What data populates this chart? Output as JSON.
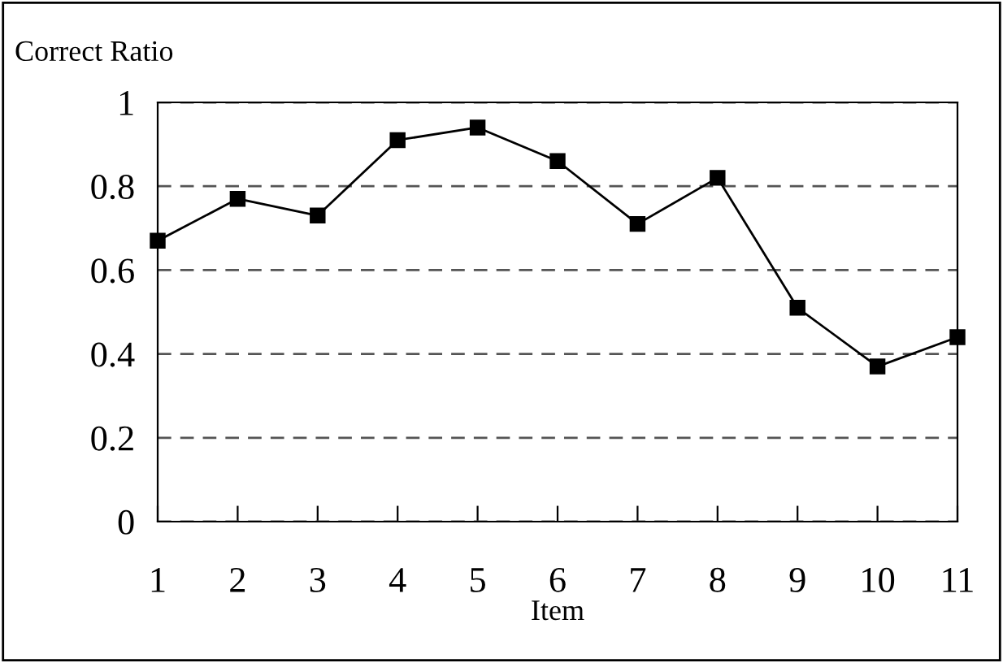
{
  "chart_data": {
    "type": "line",
    "ylabel": "Correct Ratio",
    "xlabel": "Item",
    "x": [
      1,
      2,
      3,
      4,
      5,
      6,
      7,
      8,
      9,
      10,
      11
    ],
    "series": [
      {
        "color": "#000000",
        "values": [
          0.67,
          0.77,
          0.73,
          0.91,
          0.94,
          0.86,
          0.71,
          0.82,
          0.51,
          0.37,
          0.44
        ]
      }
    ],
    "xlim": [
      1,
      11
    ],
    "xticks": [
      1,
      2,
      3,
      4,
      5,
      6,
      7,
      8,
      9,
      10,
      11
    ],
    "ylim": [
      0,
      1
    ],
    "yticks": [
      0,
      0.2,
      0.4,
      0.6,
      0.8,
      1
    ],
    "grid": "y",
    "marker": "square",
    "line_style": "solid",
    "legend": false
  }
}
